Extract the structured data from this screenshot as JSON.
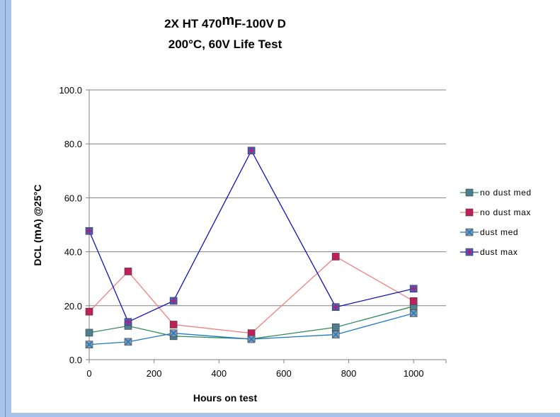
{
  "chart_data": {
    "type": "line",
    "title_line1": "2X HT 470",
    "title_mu": "m",
    "title_line1_rest": "F-100V D",
    "title_line2": "200°C, 60V Life Test",
    "xlabel": "Hours on test",
    "ylabel_prefix": "DCL (",
    "ylabel_mu": "m",
    "ylabel_suffix": "A) @25°C",
    "xlim": [
      0,
      1100
    ],
    "ylim": [
      0,
      100
    ],
    "x_ticks": [
      "0",
      "200",
      "400",
      "600",
      "800",
      "1000"
    ],
    "x_tick_values": [
      0,
      200,
      400,
      600,
      800,
      1000
    ],
    "y_ticks": [
      "0.0",
      "20.0",
      "40.0",
      "60.0",
      "80.0",
      "100.0"
    ],
    "y_tick_values": [
      0,
      20,
      40,
      60,
      80,
      100
    ],
    "grid": "horizontal",
    "legend_position": "right",
    "x": [
      0,
      120,
      260,
      500,
      760,
      1000
    ],
    "series": [
      {
        "name": "no dust med",
        "color": "#2e8b57",
        "marker": "square",
        "marker_color": "#4f7f8f",
        "values": [
          10.0,
          12.5,
          8.7,
          7.7,
          12.0,
          19.8
        ]
      },
      {
        "name": "no dust max",
        "color": "#f08080",
        "marker": "square",
        "marker_color": "#c0205a",
        "values": [
          17.8,
          32.7,
          13.0,
          9.8,
          38.2,
          21.7
        ]
      },
      {
        "name": "dust med",
        "color": "#1e78c8",
        "marker": "x-square",
        "marker_color": "#8a9aa8",
        "values": [
          5.6,
          6.6,
          9.8,
          7.6,
          9.3,
          17.2
        ]
      },
      {
        "name": "dust max",
        "color": "#1010c0",
        "marker": "plus-square",
        "marker_color": "#4a5ab8",
        "values": [
          47.7,
          14.0,
          21.8,
          77.5,
          19.5,
          26.3
        ]
      }
    ]
  }
}
